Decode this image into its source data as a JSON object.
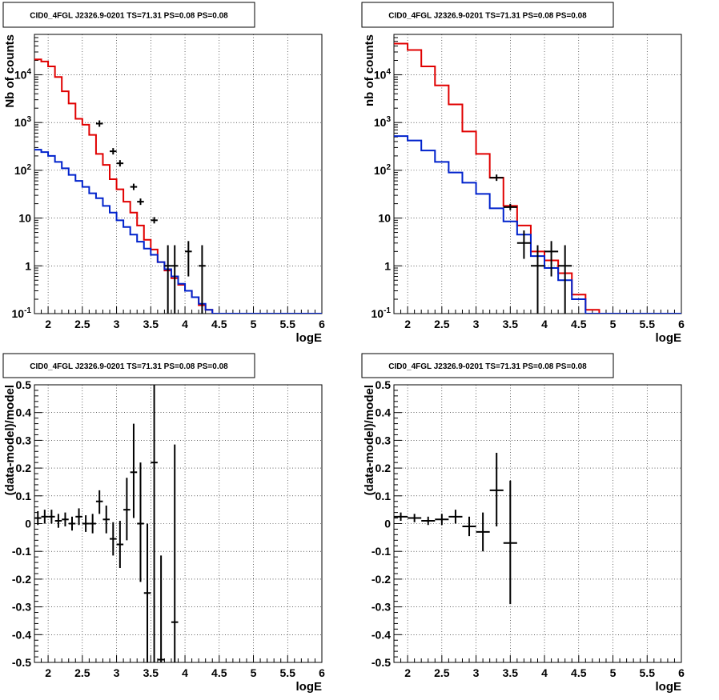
{
  "chart_data": [
    {
      "type": "line",
      "title": "CID0_4FGL J2326.9-0201 TS=71.31 PS=0.08 PS=0.08",
      "xlabel": "logE",
      "ylabel": "Nb of counts",
      "ylog": true,
      "xlim": [
        1.8,
        6.0
      ],
      "ylim": [
        0.1,
        70000
      ],
      "xticks": [
        "2",
        "2.5",
        "3",
        "3.5",
        "4",
        "4.5",
        "5",
        "5.5",
        "6"
      ],
      "yticks": [
        "10^{-1}",
        "1",
        "10",
        "10^{2}",
        "10^{3}",
        "10^{4}"
      ],
      "grid": true,
      "series": [
        {
          "kind": "hist",
          "color": "#e00000",
          "edges": [
            1.8,
            1.9,
            2.0,
            2.1,
            2.2,
            2.3,
            2.4,
            2.5,
            2.6,
            2.7,
            2.8,
            2.9,
            3.0,
            3.1,
            3.2,
            3.3,
            3.4,
            3.5,
            3.6,
            3.7,
            3.8,
            3.9,
            4.0,
            4.1,
            4.2,
            4.3,
            4.4,
            4.5,
            4.6,
            6.0
          ],
          "values": [
            21000,
            19000,
            15000,
            9000,
            4500,
            2500,
            1200,
            900,
            550,
            220,
            130,
            65,
            40,
            22,
            13,
            7,
            3.5,
            2.2,
            1.2,
            0.8,
            0.55,
            0.4,
            0.3,
            0.22,
            0.15,
            0.12,
            0.1,
            0.1,
            0.1
          ]
        },
        {
          "kind": "hist",
          "color": "#0022cc",
          "edges": [
            1.8,
            1.9,
            2.0,
            2.1,
            2.2,
            2.3,
            2.4,
            2.5,
            2.6,
            2.7,
            2.8,
            2.9,
            3.0,
            3.1,
            3.2,
            3.3,
            3.4,
            3.5,
            3.6,
            3.7,
            3.8,
            3.9,
            4.0,
            4.1,
            4.2,
            4.3,
            4.4,
            4.5,
            4.6,
            6.0
          ],
          "values": [
            270,
            240,
            200,
            150,
            110,
            80,
            60,
            45,
            33,
            26,
            18,
            13,
            9,
            6.5,
            4.5,
            3.2,
            2.3,
            1.7,
            1.2,
            0.85,
            0.6,
            0.42,
            0.3,
            0.22,
            0.16,
            0.12,
            0.1,
            0.1,
            0.1
          ]
        },
        {
          "kind": "points",
          "color": "#000000",
          "x": [
            2.75,
            2.95,
            3.05,
            3.25,
            3.35,
            3.55,
            3.75,
            3.85,
            4.05,
            4.25
          ],
          "y": [
            950,
            250,
            140,
            45,
            22,
            9,
            1,
            1,
            2,
            1
          ],
          "xerr": 0.05,
          "ylo": [
            0,
            0,
            0,
            0,
            0,
            0,
            0.1,
            0.1,
            0.6,
            0.1
          ],
          "yhi": [
            0,
            0,
            0,
            0,
            0,
            0,
            2.7,
            2.7,
            3.3,
            2.7
          ]
        }
      ]
    },
    {
      "type": "line",
      "title": "CID0_4FGL J2326.9-0201 TS=71.31 PS=0.08 PS=0.08",
      "xlabel": "logE",
      "ylabel": "nb of counts",
      "ylog": true,
      "xlim": [
        1.8,
        6.0
      ],
      "ylim": [
        0.1,
        70000
      ],
      "xticks": [
        "2",
        "2.5",
        "3",
        "3.5",
        "4",
        "4.5",
        "5",
        "5.5",
        "6"
      ],
      "yticks": [
        "10^{-1}",
        "1",
        "10",
        "10^{2}",
        "10^{3}",
        "10^{4}"
      ],
      "grid": true,
      "series": [
        {
          "kind": "hist",
          "color": "#e00000",
          "edges": [
            1.8,
            2.0,
            2.2,
            2.4,
            2.6,
            2.8,
            3.0,
            3.2,
            3.4,
            3.6,
            3.8,
            4.0,
            4.2,
            4.4,
            4.6,
            4.8,
            6.0
          ],
          "values": [
            45000,
            33000,
            15000,
            6000,
            2400,
            650,
            220,
            70,
            18,
            7,
            2,
            1.3,
            0.7,
            0.25,
            0.12,
            0.1
          ]
        },
        {
          "kind": "hist",
          "color": "#0022cc",
          "edges": [
            1.8,
            2.0,
            2.2,
            2.4,
            2.6,
            2.8,
            3.0,
            3.2,
            3.4,
            3.6,
            3.8,
            4.0,
            4.2,
            4.4,
            4.6,
            4.8,
            6.0
          ],
          "values": [
            520,
            420,
            260,
            150,
            90,
            55,
            32,
            16,
            8.5,
            4.5,
            1.6,
            0.9,
            0.5,
            0.2,
            0.1,
            0.1
          ]
        },
        {
          "kind": "points",
          "color": "#000000",
          "x": [
            3.3,
            3.5,
            3.7,
            3.9,
            4.1,
            4.3
          ],
          "y": [
            70,
            17,
            3,
            1,
            2,
            1
          ],
          "xerr": 0.1,
          "ylo": [
            0,
            0,
            1.4,
            0.1,
            0.6,
            0.1
          ],
          "yhi": [
            0,
            0,
            5.5,
            2.7,
            3.3,
            2.7
          ]
        }
      ]
    },
    {
      "type": "scatter",
      "title": "CID0_4FGL J2326.9-0201 TS=71.31 PS=0.08 PS=0.08",
      "xlabel": "logE",
      "ylabel": "(data-model)/model",
      "ylog": false,
      "xlim": [
        1.8,
        6.0
      ],
      "ylim": [
        -0.5,
        0.5
      ],
      "xticks": [
        "2",
        "2.5",
        "3",
        "3.5",
        "4",
        "4.5",
        "5",
        "5.5",
        "6"
      ],
      "yticks": [
        "-0.5",
        "-0.4",
        "-0.3",
        "-0.2",
        "-0.1",
        "0",
        "0.1",
        "0.2",
        "0.3",
        "0.4",
        "0.5"
      ],
      "grid": true,
      "series": [
        {
          "kind": "points",
          "color": "#000000",
          "xerr": 0.05,
          "x": [
            1.85,
            1.95,
            2.05,
            2.15,
            2.25,
            2.35,
            2.45,
            2.55,
            2.65,
            2.75,
            2.85,
            2.95,
            3.05,
            3.15,
            3.25,
            3.35,
            3.45,
            3.55,
            3.65,
            3.85
          ],
          "y": [
            0.02,
            0.025,
            0.025,
            0.01,
            0.015,
            0.0,
            0.025,
            0.0,
            0.0,
            0.08,
            0.015,
            -0.055,
            -0.075,
            0.05,
            0.185,
            0.0,
            -0.25,
            0.22,
            -0.49,
            -0.355
          ],
          "ylo": [
            -0.005,
            0.0,
            0.0,
            -0.015,
            -0.01,
            -0.025,
            -0.005,
            -0.03,
            -0.035,
            0.035,
            -0.035,
            -0.115,
            -0.16,
            -0.06,
            0.02,
            -0.21,
            -0.5,
            -0.5,
            -0.5,
            -0.5
          ],
          "yhi": [
            0.045,
            0.05,
            0.05,
            0.035,
            0.04,
            0.025,
            0.055,
            0.03,
            0.035,
            0.12,
            0.065,
            0.005,
            0.01,
            0.165,
            0.36,
            0.22,
            0.0,
            0.5,
            -0.115,
            0.285
          ]
        }
      ]
    },
    {
      "type": "scatter",
      "title": "CID0_4FGL J2326.9-0201 TS=71.31 PS=0.08 PS=0.08",
      "xlabel": "logE",
      "ylabel": "(data-model)/model",
      "ylog": false,
      "xlim": [
        1.8,
        6.0
      ],
      "ylim": [
        -0.5,
        0.5
      ],
      "xticks": [
        "2",
        "2.5",
        "3",
        "3.5",
        "4",
        "4.5",
        "5",
        "5.5",
        "6"
      ],
      "yticks": [
        "-0.5",
        "-0.4",
        "-0.3",
        "-0.2",
        "-0.1",
        "0",
        "0.1",
        "0.2",
        "0.3",
        "0.4",
        "0.5"
      ],
      "grid": true,
      "series": [
        {
          "kind": "points",
          "color": "#000000",
          "xerr": 0.1,
          "x": [
            1.9,
            2.1,
            2.3,
            2.5,
            2.7,
            2.9,
            3.1,
            3.3,
            3.5
          ],
          "y": [
            0.025,
            0.02,
            0.01,
            0.015,
            0.025,
            -0.01,
            -0.03,
            0.12,
            -0.07
          ],
          "ylo": [
            0.01,
            0.005,
            -0.005,
            -0.005,
            0.0,
            -0.045,
            -0.1,
            -0.01,
            -0.29
          ],
          "yhi": [
            0.04,
            0.035,
            0.025,
            0.035,
            0.05,
            0.025,
            0.04,
            0.255,
            0.155
          ]
        }
      ]
    }
  ]
}
